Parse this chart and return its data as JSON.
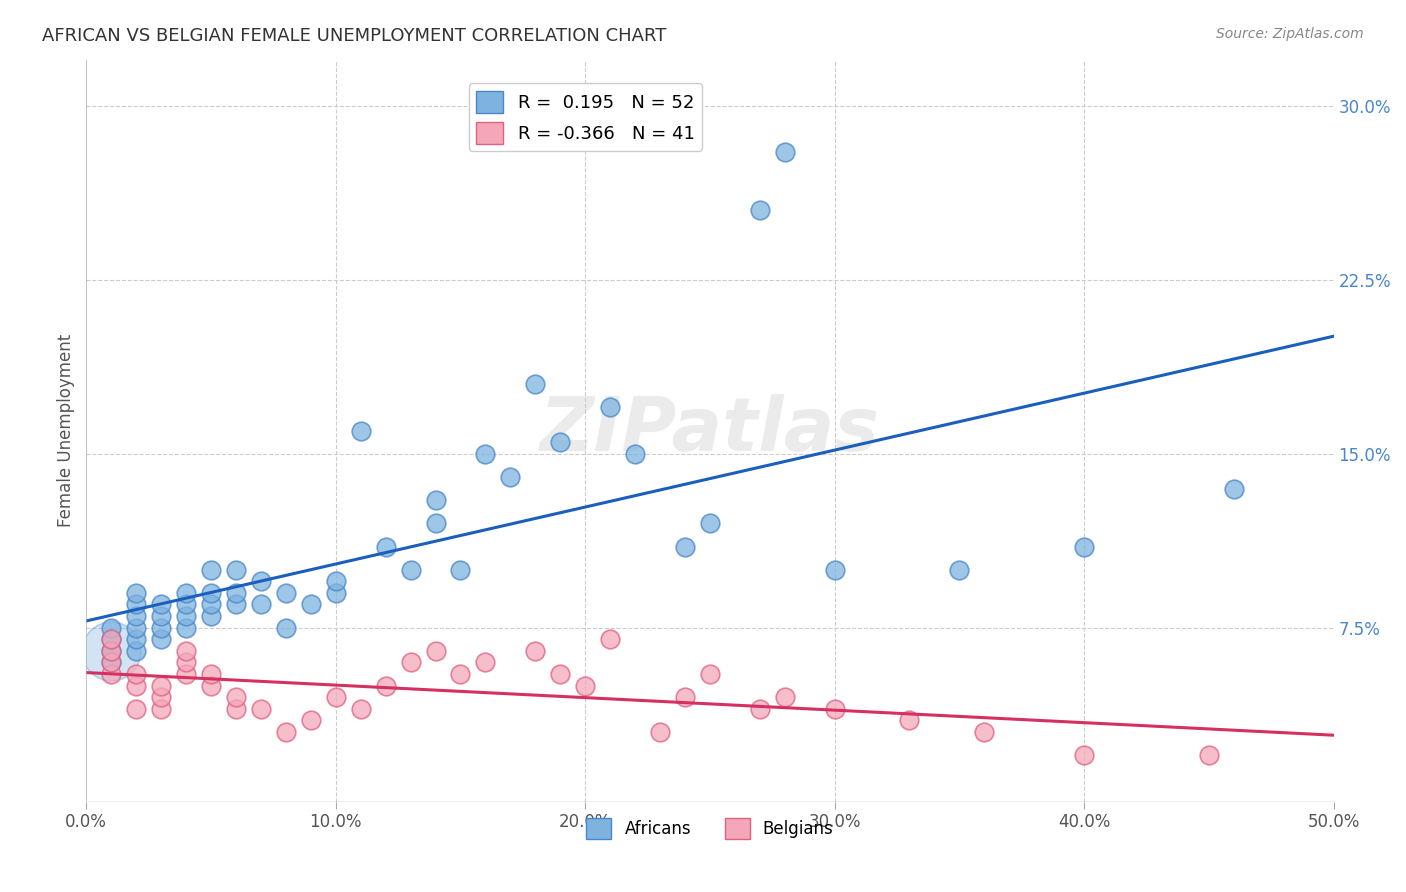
{
  "title": "AFRICAN VS BELGIAN FEMALE UNEMPLOYMENT CORRELATION CHART",
  "source": "Source: ZipAtlas.com",
  "ylabel": "Female Unemployment",
  "xlim": [
    0.0,
    0.5
  ],
  "ylim": [
    0.0,
    0.32
  ],
  "xticks": [
    0.0,
    0.1,
    0.2,
    0.3,
    0.4,
    0.5
  ],
  "yticks_right": [
    0.075,
    0.15,
    0.225,
    0.3
  ],
  "ytick_labels_right": [
    "7.5%",
    "15.0%",
    "22.5%",
    "30.0%"
  ],
  "xtick_labels": [
    "0.0%",
    "10.0%",
    "20.0%",
    "30.0%",
    "40.0%",
    "50.0%"
  ],
  "background_color": "#ffffff",
  "grid_color": "#cccccc",
  "africans_color": "#7eb3e0",
  "africans_edge_color": "#4a86c8",
  "belgians_color": "#f4a7b9",
  "belgians_edge_color": "#e06080",
  "africans_line_color": "#1a5fbe",
  "belgians_line_color": "#d63060",
  "legend_africans": "Africans",
  "legend_belgians": "Belgians",
  "africans_R": 0.195,
  "africans_N": 52,
  "belgians_R": -0.366,
  "belgians_N": 41,
  "africans_x": [
    0.01,
    0.01,
    0.01,
    0.01,
    0.02,
    0.02,
    0.02,
    0.02,
    0.02,
    0.02,
    0.03,
    0.03,
    0.03,
    0.03,
    0.04,
    0.04,
    0.04,
    0.04,
    0.05,
    0.05,
    0.05,
    0.05,
    0.06,
    0.06,
    0.06,
    0.07,
    0.07,
    0.08,
    0.08,
    0.09,
    0.1,
    0.1,
    0.11,
    0.12,
    0.13,
    0.14,
    0.14,
    0.15,
    0.16,
    0.17,
    0.18,
    0.19,
    0.21,
    0.22,
    0.24,
    0.25,
    0.27,
    0.28,
    0.3,
    0.35,
    0.4,
    0.46
  ],
  "africans_y": [
    0.06,
    0.065,
    0.07,
    0.075,
    0.065,
    0.07,
    0.075,
    0.08,
    0.085,
    0.09,
    0.07,
    0.075,
    0.08,
    0.085,
    0.075,
    0.08,
    0.085,
    0.09,
    0.08,
    0.085,
    0.09,
    0.1,
    0.085,
    0.09,
    0.1,
    0.085,
    0.095,
    0.075,
    0.09,
    0.085,
    0.09,
    0.095,
    0.16,
    0.11,
    0.1,
    0.12,
    0.13,
    0.1,
    0.15,
    0.14,
    0.18,
    0.155,
    0.17,
    0.15,
    0.11,
    0.12,
    0.255,
    0.28,
    0.1,
    0.1,
    0.11,
    0.135
  ],
  "belgians_x": [
    0.01,
    0.01,
    0.01,
    0.01,
    0.02,
    0.02,
    0.02,
    0.03,
    0.03,
    0.03,
    0.04,
    0.04,
    0.04,
    0.05,
    0.05,
    0.06,
    0.06,
    0.07,
    0.08,
    0.09,
    0.1,
    0.11,
    0.12,
    0.13,
    0.14,
    0.15,
    0.16,
    0.18,
    0.19,
    0.2,
    0.21,
    0.23,
    0.24,
    0.25,
    0.27,
    0.28,
    0.3,
    0.33,
    0.36,
    0.4,
    0.45
  ],
  "belgians_y": [
    0.055,
    0.06,
    0.065,
    0.07,
    0.04,
    0.05,
    0.055,
    0.04,
    0.045,
    0.05,
    0.055,
    0.06,
    0.065,
    0.05,
    0.055,
    0.04,
    0.045,
    0.04,
    0.03,
    0.035,
    0.045,
    0.04,
    0.05,
    0.06,
    0.065,
    0.055,
    0.06,
    0.065,
    0.055,
    0.05,
    0.07,
    0.03,
    0.045,
    0.055,
    0.04,
    0.045,
    0.04,
    0.035,
    0.03,
    0.02,
    0.02
  ]
}
